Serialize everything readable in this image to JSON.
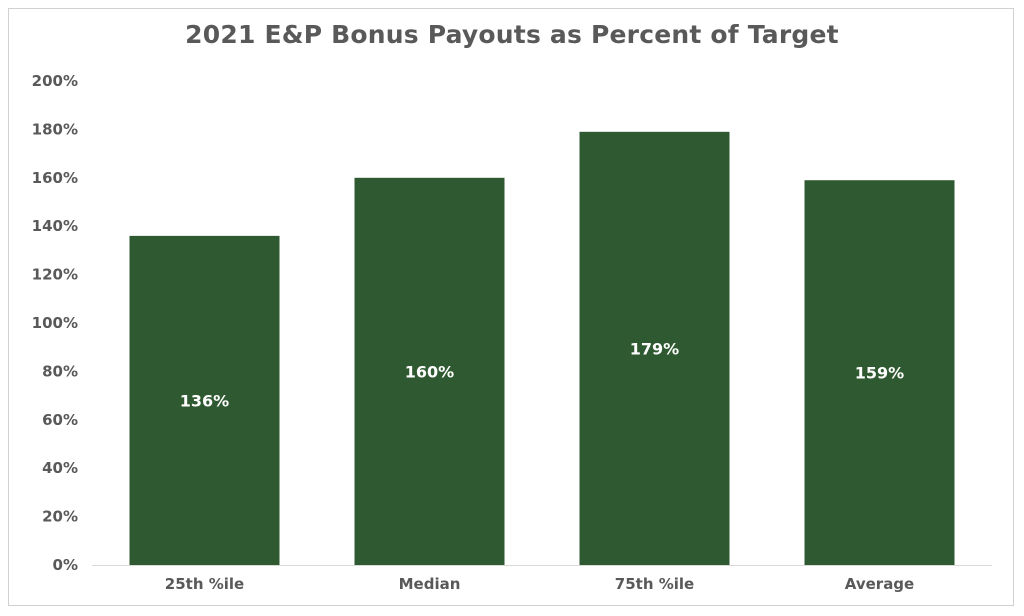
{
  "chart_data": {
    "type": "bar",
    "title": "2021 E&P Bonus Payouts as Percent of Target",
    "xlabel": "",
    "ylabel": "",
    "categories": [
      "25th %ile",
      "Median",
      "75th %ile",
      "Average"
    ],
    "values": [
      136,
      160,
      179,
      159
    ],
    "data_labels": [
      "136%",
      "160%",
      "179%",
      "159%"
    ],
    "ylim": [
      0,
      200
    ],
    "y_ticks": [
      0,
      20,
      40,
      60,
      80,
      100,
      120,
      140,
      160,
      180,
      200
    ],
    "y_tick_labels": [
      "0%",
      "20%",
      "40%",
      "60%",
      "80%",
      "100%",
      "120%",
      "140%",
      "160%",
      "180%",
      "200%"
    ],
    "grid": false,
    "legend": "none",
    "bar_color": "#2f5930",
    "text_color": "#595959",
    "data_label_color": "#ffffff"
  }
}
